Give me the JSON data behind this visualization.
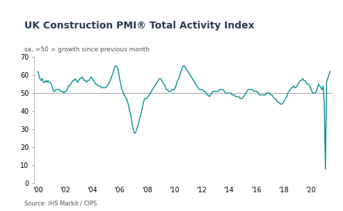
{
  "title": "UK Construction PMI® Total Activity Index",
  "subtitle": "sa, >50 = growth since previous month",
  "source": "Source: IHS Markit / CIPS.",
  "line_color": "#008B8B",
  "reference_line": 50,
  "reference_color": "#aaaaaa",
  "title_color": "#2b3a52",
  "subtitle_color": "#555555",
  "source_color": "#555555",
  "background_color": "#ffffff",
  "ylim": [
    0,
    70
  ],
  "yticks": [
    0,
    10,
    20,
    30,
    40,
    50,
    60,
    70
  ],
  "xtick_labels": [
    "'00",
    "'02",
    "'04",
    "'06",
    "'08",
    "'10",
    "'12",
    "'14",
    "'16",
    "'18",
    "'20"
  ],
  "values": [
    62,
    60,
    58,
    57,
    58,
    56,
    56,
    57,
    56,
    57,
    56,
    56,
    55,
    53,
    51,
    51,
    52,
    52,
    52,
    52,
    51,
    51,
    51,
    50,
    51,
    51,
    52,
    54,
    54,
    55,
    56,
    57,
    57,
    58,
    57,
    56,
    57,
    58,
    58,
    59,
    58,
    57,
    57,
    56,
    57,
    57,
    58,
    59,
    58,
    57,
    56,
    55,
    55,
    54,
    54,
    54,
    53,
    53,
    53,
    53,
    53,
    54,
    55,
    56,
    57,
    59,
    61,
    63,
    65,
    65,
    64,
    62,
    58,
    55,
    52,
    51,
    49,
    48,
    47,
    45,
    43,
    40,
    37,
    33,
    30,
    28,
    28,
    30,
    32,
    34,
    37,
    39,
    42,
    45,
    47,
    47,
    47,
    48,
    49,
    50,
    51,
    52,
    53,
    54,
    55,
    56,
    57,
    58,
    58,
    57,
    56,
    55,
    54,
    52,
    52,
    51,
    51,
    51,
    52,
    52,
    52,
    53,
    55,
    57,
    58,
    60,
    62,
    64,
    65,
    65,
    64,
    63,
    62,
    61,
    60,
    59,
    58,
    57,
    56,
    55,
    54,
    53,
    52,
    52,
    52,
    52,
    51,
    51,
    50,
    49,
    49,
    48,
    49,
    50,
    51,
    51,
    51,
    51,
    51,
    51,
    52,
    52,
    52,
    52,
    51,
    50,
    50,
    50,
    50,
    50,
    50,
    49,
    49,
    49,
    48,
    48,
    48,
    48,
    47,
    47,
    47,
    48,
    49,
    50,
    51,
    52,
    52,
    52,
    52,
    52,
    51,
    51,
    51,
    51,
    50,
    49,
    49,
    49,
    49,
    49,
    49,
    50,
    50,
    50,
    50,
    49,
    49,
    48,
    47,
    47,
    46,
    45,
    45,
    44,
    44,
    44,
    45,
    46,
    47,
    48,
    50,
    51,
    52,
    53,
    53,
    54,
    53,
    53,
    54,
    55,
    56,
    57,
    57,
    58,
    57,
    57,
    56,
    55,
    55,
    54,
    53,
    51,
    50,
    50,
    50,
    51,
    53,
    55,
    54,
    53,
    52,
    54,
    44,
    8,
    56,
    58,
    60,
    62
  ]
}
